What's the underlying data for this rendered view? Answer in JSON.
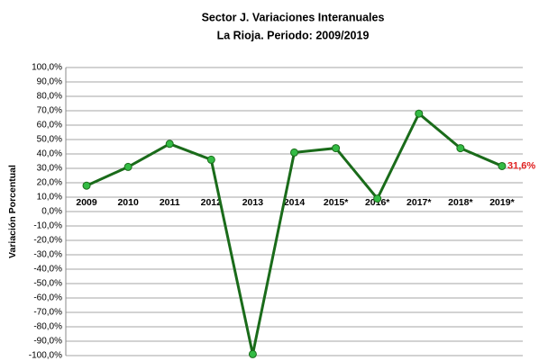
{
  "chart_data": {
    "type": "line",
    "title": "Sector J. Variaciones Interanuales",
    "subtitle": "La Rioja. Periodo: 2009/2019",
    "y_label": "Variación Porcentual",
    "categories": [
      "2009",
      "2010",
      "2011",
      "2012",
      "2013",
      "2014",
      "2015*",
      "2016*",
      "2017*",
      "2018*",
      "2019*"
    ],
    "series": [
      {
        "color": "#1a6b1a",
        "marker_color": "#33bb44",
        "values": [
          18,
          31,
          47,
          36,
          -99,
          41,
          44,
          9,
          68,
          44,
          31.6
        ],
        "value_labels": [
          null,
          null,
          null,
          null,
          null,
          null,
          null,
          null,
          null,
          null,
          "31,6%"
        ]
      }
    ],
    "ylim": [
      -100,
      100
    ],
    "yticks": [
      {
        "value": -100,
        "label": "-100,0%"
      },
      {
        "value": -90,
        "label": "-90,0%"
      },
      {
        "value": -80,
        "label": "-80,0%"
      },
      {
        "value": -70,
        "label": "-70,0%"
      },
      {
        "value": -60,
        "label": "-60,0%"
      },
      {
        "value": -50,
        "label": "-50,0%"
      },
      {
        "value": -40,
        "label": "-40,0%"
      },
      {
        "value": -30,
        "label": "-30,0%"
      },
      {
        "value": -20,
        "label": "-20,0%"
      },
      {
        "value": -10,
        "label": "-10,0%"
      },
      {
        "value": 0,
        "label": "0,0%"
      },
      {
        "value": 10,
        "label": "10,0%"
      },
      {
        "value": 20,
        "label": "20,0%"
      },
      {
        "value": 30,
        "label": "30,0%"
      },
      {
        "value": 40,
        "label": "40,0%"
      },
      {
        "value": 50,
        "label": "50,0%"
      },
      {
        "value": 60,
        "label": "60,0%"
      },
      {
        "value": 70,
        "label": "70,0%"
      },
      {
        "value": 80,
        "label": "80,0%"
      },
      {
        "value": 90,
        "label": "90,0%"
      },
      {
        "value": 100,
        "label": "100,0%"
      }
    ],
    "grid": true
  }
}
